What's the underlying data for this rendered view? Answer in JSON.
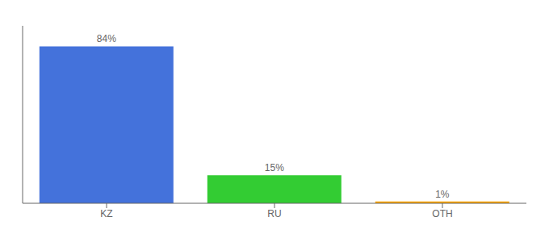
{
  "chart_data": {
    "type": "bar",
    "categories": [
      "KZ",
      "RU",
      "OTH"
    ],
    "values": [
      84,
      15,
      1
    ],
    "value_labels": [
      "84%",
      "15%",
      "1%"
    ],
    "colors": [
      "#4472db",
      "#33cc33",
      "#ffa500"
    ],
    "ylim": [
      0,
      95
    ],
    "data_labels": true,
    "tick_labels": "x"
  }
}
